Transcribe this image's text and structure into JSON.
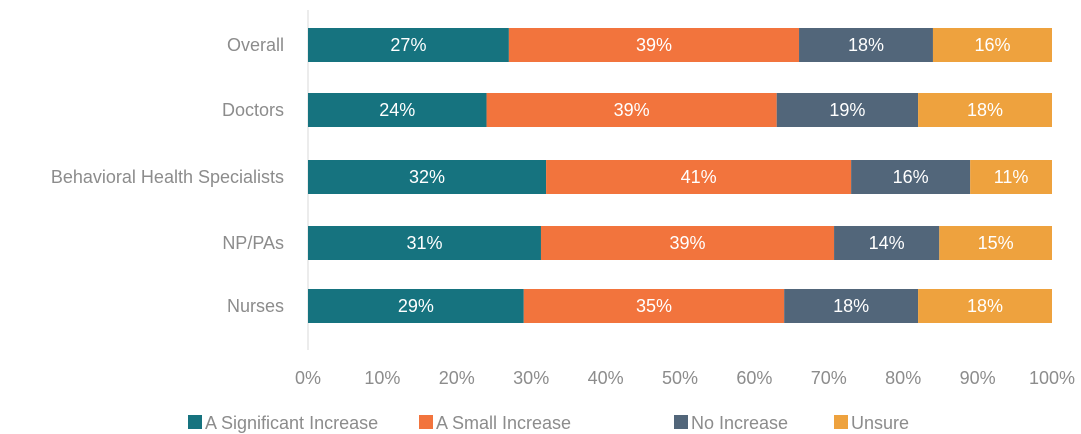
{
  "chart_data": {
    "type": "bar",
    "orientation": "horizontal",
    "stacked": "percent",
    "categories": [
      "Overall",
      "Doctors",
      "Behavioral Health Specialists",
      "NP/PAs",
      "Nurses"
    ],
    "series": [
      {
        "name": "A Significant Increase",
        "color": "#16737F",
        "values": [
          27,
          24,
          32,
          31,
          29
        ]
      },
      {
        "name": "A Small Increase",
        "color": "#F2743D",
        "values": [
          39,
          39,
          41,
          39,
          35
        ]
      },
      {
        "name": "No Increase",
        "color": "#52667A",
        "values": [
          18,
          19,
          16,
          14,
          18
        ]
      },
      {
        "name": "Unsure",
        "color": "#EEA23E",
        "values": [
          16,
          18,
          11,
          15,
          18
        ]
      }
    ],
    "xlim": [
      0,
      100
    ],
    "xticks": [
      "0%",
      "10%",
      "20%",
      "30%",
      "40%",
      "50%",
      "60%",
      "70%",
      "80%",
      "90%",
      "100%"
    ],
    "value_suffix": "%",
    "legend_position": "bottom",
    "grid": false
  }
}
